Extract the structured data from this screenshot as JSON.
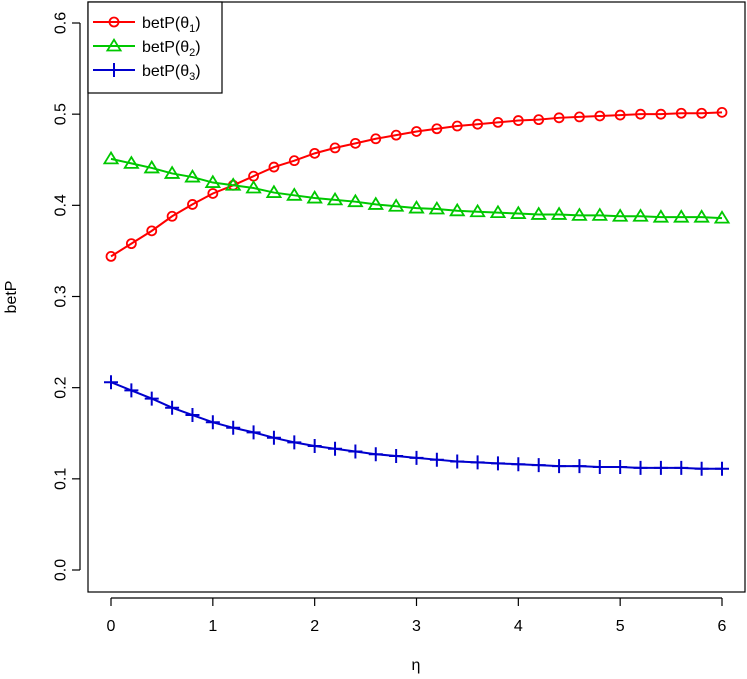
{
  "chart_data": {
    "type": "line",
    "title": "",
    "xlabel": "η",
    "ylabel": "betP",
    "xlim": [
      0,
      6
    ],
    "ylim": [
      0,
      0.6
    ],
    "xticks": [
      "0",
      "1",
      "2",
      "3",
      "4",
      "5",
      "6"
    ],
    "yticks": [
      "0.0",
      "0.1",
      "0.2",
      "0.3",
      "0.4",
      "0.5",
      "0.6"
    ],
    "legend_position": "top-left",
    "grid": false,
    "x": [
      0,
      0.2,
      0.4,
      0.6,
      0.8,
      1.0,
      1.2,
      1.4,
      1.6,
      1.8,
      2.0,
      2.2,
      2.4,
      2.6,
      2.8,
      3.0,
      3.2,
      3.4,
      3.6,
      3.8,
      4.0,
      4.2,
      4.4,
      4.6,
      4.8,
      5.0,
      5.2,
      5.4,
      5.6,
      5.8,
      6.0
    ],
    "series": [
      {
        "name": "betP(θ1)",
        "name_base": "betP(θ",
        "name_sub": "1",
        "color": "#ff0000",
        "marker": "circle",
        "values": [
          0.344,
          0.358,
          0.372,
          0.388,
          0.401,
          0.413,
          0.422,
          0.432,
          0.442,
          0.449,
          0.457,
          0.463,
          0.468,
          0.473,
          0.477,
          0.481,
          0.484,
          0.487,
          0.489,
          0.491,
          0.493,
          0.494,
          0.496,
          0.497,
          0.498,
          0.499,
          0.5,
          0.5,
          0.501,
          0.501,
          0.502
        ]
      },
      {
        "name": "betP(θ2)",
        "name_base": "betP(θ",
        "name_sub": "2",
        "color": "#00c800",
        "marker": "triangle",
        "values": [
          0.451,
          0.446,
          0.441,
          0.435,
          0.431,
          0.425,
          0.422,
          0.419,
          0.414,
          0.411,
          0.408,
          0.406,
          0.404,
          0.401,
          0.399,
          0.397,
          0.396,
          0.394,
          0.393,
          0.392,
          0.391,
          0.39,
          0.39,
          0.389,
          0.389,
          0.388,
          0.388,
          0.387,
          0.387,
          0.387,
          0.386
        ]
      },
      {
        "name": "betP(θ3)",
        "name_base": "betP(θ",
        "name_sub": "3",
        "color": "#0000cd",
        "marker": "plus",
        "values": [
          0.206,
          0.197,
          0.188,
          0.178,
          0.17,
          0.162,
          0.156,
          0.151,
          0.145,
          0.14,
          0.136,
          0.133,
          0.13,
          0.127,
          0.125,
          0.123,
          0.121,
          0.119,
          0.118,
          0.117,
          0.116,
          0.115,
          0.114,
          0.114,
          0.113,
          0.113,
          0.112,
          0.112,
          0.112,
          0.111,
          0.111
        ]
      }
    ]
  }
}
